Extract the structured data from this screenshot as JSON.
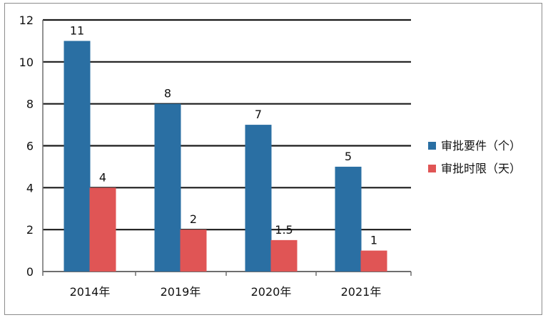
{
  "chart_data": {
    "type": "bar",
    "categories": [
      "2014年",
      "2019年",
      "2020年",
      "2021年"
    ],
    "series": [
      {
        "name": "审批要件（个）",
        "values": [
          11,
          8,
          7,
          5
        ],
        "labels": [
          "11",
          "8",
          "7",
          "5"
        ],
        "color": "#2a6fa3"
      },
      {
        "name": "审批时限（天）",
        "values": [
          4,
          2,
          1.5,
          1
        ],
        "labels": [
          "4",
          "2",
          "1.5",
          "1"
        ],
        "color": "#e05555"
      }
    ],
    "yticks": [
      "0",
      "2",
      "4",
      "6",
      "8",
      "10",
      "12"
    ],
    "ylim": [
      0,
      12
    ],
    "grid": true,
    "legend_position": "right",
    "title": "",
    "xlabel": "",
    "ylabel": ""
  }
}
